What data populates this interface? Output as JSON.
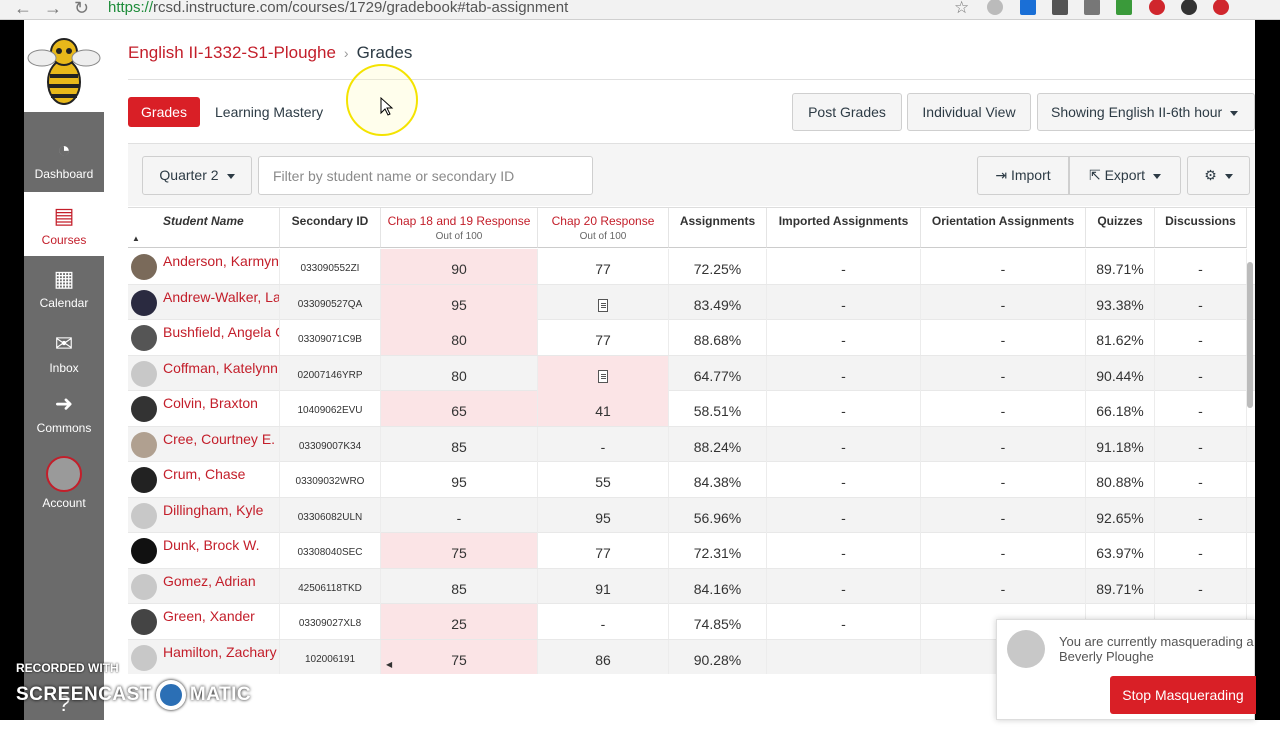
{
  "browser": {
    "url_scheme": "https://",
    "url_rest": "rcsd.instructure.com/courses/1729/gradebook#tab-assignment"
  },
  "nav": {
    "dashboard": "Dashboard",
    "courses": "Courses",
    "calendar": "Calendar",
    "inbox": "Inbox",
    "commons": "Commons",
    "account": "Account",
    "help": "Help"
  },
  "breadcrumb": {
    "course": "English II-1332-S1-Ploughe",
    "separator": "›",
    "page": "Grades"
  },
  "tabs": {
    "grades": "Grades",
    "learning_mastery": "Learning Mastery"
  },
  "actions": {
    "post_grades": "Post Grades",
    "individual_view": "Individual View",
    "section": "Showing English II-6th hour"
  },
  "toolbar": {
    "period": "Quarter 2",
    "filter_placeholder": "Filter by student name or secondary ID",
    "import": "Import",
    "export": "Export"
  },
  "columns": {
    "student_name": "Student Name",
    "secondary_id": "Secondary ID",
    "chap18": "Chap 18 and 19 Response",
    "chap18_sub": "Out of 100",
    "chap20": "Chap 20 Response",
    "chap20_sub": "Out of 100",
    "assignments": "Assignments",
    "imported": "Imported Assignments",
    "orientation": "Orientation Assignments",
    "quizzes": "Quizzes",
    "discussions": "Discussions"
  },
  "rows": [
    {
      "name": "Anderson, Karmyn",
      "sid": "033090552ZI",
      "c18": "90",
      "c20": "77",
      "assign": "72.25%",
      "imp": "-",
      "ori": "-",
      "quiz": "89.71%",
      "disc": "-"
    },
    {
      "name": "Andrew-Walker, La",
      "sid": "033090527QA",
      "c18": "95",
      "c20": "",
      "assign": "83.49%",
      "imp": "-",
      "ori": "-",
      "quiz": "93.38%",
      "disc": "-"
    },
    {
      "name": "Bushfield, Angela C",
      "sid": "03309071C9B",
      "c18": "80",
      "c20": "77",
      "assign": "88.68%",
      "imp": "-",
      "ori": "-",
      "quiz": "81.62%",
      "disc": "-"
    },
    {
      "name": "Coffman, Katelynn",
      "sid": "02007146YRP",
      "c18": "80",
      "c20": "",
      "assign": "64.77%",
      "imp": "-",
      "ori": "-",
      "quiz": "90.44%",
      "disc": "-"
    },
    {
      "name": "Colvin, Braxton",
      "sid": "10409062EVU",
      "c18": "65",
      "c20": "41",
      "assign": "58.51%",
      "imp": "-",
      "ori": "-",
      "quiz": "66.18%",
      "disc": "-"
    },
    {
      "name": "Cree, Courtney E.",
      "sid": "03309007K34",
      "c18": "85",
      "c20": "-",
      "assign": "88.24%",
      "imp": "-",
      "ori": "-",
      "quiz": "91.18%",
      "disc": "-"
    },
    {
      "name": "Crum, Chase",
      "sid": "03309032WRO",
      "c18": "95",
      "c20": "55",
      "assign": "84.38%",
      "imp": "-",
      "ori": "-",
      "quiz": "80.88%",
      "disc": "-"
    },
    {
      "name": "Dillingham, Kyle",
      "sid": "03306082ULN",
      "c18": "-",
      "c20": "95",
      "assign": "56.96%",
      "imp": "-",
      "ori": "-",
      "quiz": "92.65%",
      "disc": "-"
    },
    {
      "name": "Dunk, Brock W.",
      "sid": "03308040SEC",
      "c18": "75",
      "c20": "77",
      "assign": "72.31%",
      "imp": "-",
      "ori": "-",
      "quiz": "63.97%",
      "disc": "-"
    },
    {
      "name": "Gomez, Adrian",
      "sid": "42506118TKD",
      "c18": "85",
      "c20": "91",
      "assign": "84.16%",
      "imp": "-",
      "ori": "-",
      "quiz": "89.71%",
      "disc": "-"
    },
    {
      "name": "Green, Xander",
      "sid": "03309027XL8",
      "c18": "25",
      "c20": "-",
      "assign": "74.85%",
      "imp": "-",
      "ori": "-",
      "quiz": "",
      "disc": ""
    },
    {
      "name": "Hamilton, Zachary",
      "sid": "102006191",
      "c18": "75",
      "c20": "86",
      "assign": "90.28%",
      "imp": "",
      "ori": "",
      "quiz": "",
      "disc": ""
    }
  ],
  "masquerade": {
    "line1": "You are currently masquerading a",
    "line2": "Beverly Ploughe",
    "button": "Stop Masquerading"
  },
  "watermark": {
    "line1": "RECORDED WITH",
    "brand_a": "SCREENCAST",
    "brand_b": "MATIC"
  }
}
